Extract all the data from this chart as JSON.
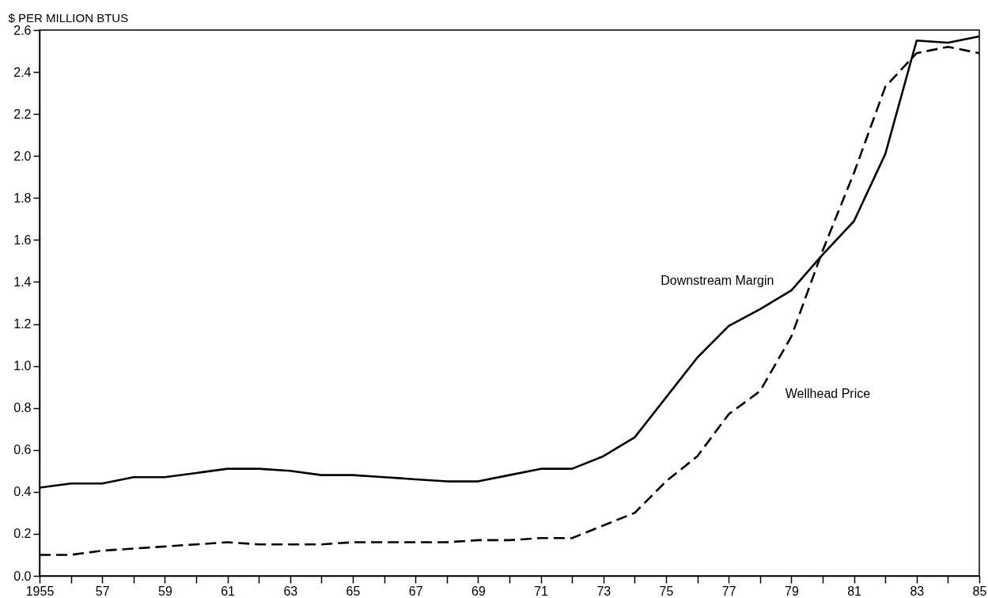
{
  "chart_data": {
    "type": "line",
    "ylabel": "$ PER MILLION BTUS",
    "x": [
      1955,
      1956,
      1957,
      1958,
      1959,
      1960,
      1961,
      1962,
      1963,
      1964,
      1965,
      1966,
      1967,
      1968,
      1969,
      1970,
      1971,
      1972,
      1973,
      1974,
      1975,
      1976,
      1977,
      1978,
      1979,
      1980,
      1981,
      1982,
      1983,
      1984,
      1985
    ],
    "series": [
      {
        "name": "Downstream Margin",
        "color": "#000000",
        "line_style": "solid",
        "values": [
          0.42,
          0.44,
          0.44,
          0.47,
          0.47,
          0.49,
          0.51,
          0.51,
          0.5,
          0.48,
          0.48,
          0.47,
          0.46,
          0.45,
          0.45,
          0.48,
          0.51,
          0.51,
          0.57,
          0.66,
          0.85,
          1.04,
          1.19,
          1.27,
          1.36,
          1.53,
          1.69,
          2.01,
          2.55,
          2.54,
          2.57
        ]
      },
      {
        "name": "Wellhead Price",
        "color": "#000000",
        "line_style": "dashed",
        "values": [
          0.1,
          0.1,
          0.12,
          0.13,
          0.14,
          0.15,
          0.16,
          0.15,
          0.15,
          0.15,
          0.16,
          0.16,
          0.16,
          0.16,
          0.17,
          0.17,
          0.18,
          0.18,
          0.24,
          0.3,
          0.45,
          0.57,
          0.77,
          0.88,
          1.14,
          1.55,
          1.92,
          2.33,
          2.49,
          2.52,
          2.49
        ]
      }
    ],
    "xlim": [
      1955,
      1985
    ],
    "xticks": [
      {
        "value": 1955,
        "label": "1955"
      },
      {
        "value": 1956,
        "label": null
      },
      {
        "value": 1957,
        "label": "57"
      },
      {
        "value": 1958,
        "label": null
      },
      {
        "value": 1959,
        "label": "59"
      },
      {
        "value": 1960,
        "label": null
      },
      {
        "value": 1961,
        "label": "61"
      },
      {
        "value": 1962,
        "label": null
      },
      {
        "value": 1963,
        "label": "63"
      },
      {
        "value": 1964,
        "label": null
      },
      {
        "value": 1965,
        "label": "65"
      },
      {
        "value": 1966,
        "label": null
      },
      {
        "value": 1967,
        "label": "67"
      },
      {
        "value": 1968,
        "label": null
      },
      {
        "value": 1969,
        "label": "69"
      },
      {
        "value": 1970,
        "label": null
      },
      {
        "value": 1971,
        "label": "71"
      },
      {
        "value": 1972,
        "label": null
      },
      {
        "value": 1973,
        "label": "73"
      },
      {
        "value": 1974,
        "label": null
      },
      {
        "value": 1975,
        "label": "75"
      },
      {
        "value": 1976,
        "label": null
      },
      {
        "value": 1977,
        "label": "77"
      },
      {
        "value": 1978,
        "label": null
      },
      {
        "value": 1979,
        "label": "79"
      },
      {
        "value": 1980,
        "label": null
      },
      {
        "value": 1981,
        "label": "81"
      },
      {
        "value": 1982,
        "label": null
      },
      {
        "value": 1983,
        "label": "83"
      },
      {
        "value": 1984,
        "label": null
      },
      {
        "value": 1985,
        "label": "85"
      }
    ],
    "ylim": [
      0,
      2.6
    ],
    "yticks": [
      {
        "value": 0,
        "label": "0.0"
      },
      0.2,
      0.4,
      0.6,
      0.8,
      {
        "value": 1,
        "label": "1.0"
      },
      1.2,
      1.4,
      1.6,
      1.8,
      {
        "value": 2,
        "label": "2.0"
      },
      2.2,
      2.4,
      2.6
    ],
    "grid": false,
    "legend": false,
    "marker": "none"
  }
}
